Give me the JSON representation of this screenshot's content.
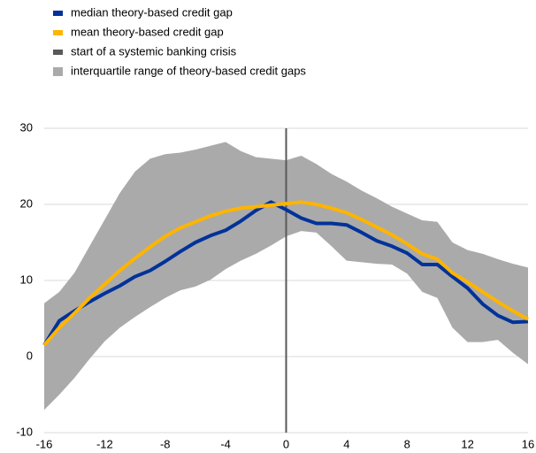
{
  "chart_data": {
    "type": "line",
    "x": [
      -16,
      -15,
      -14,
      -13,
      -12,
      -11,
      -10,
      -9,
      -8,
      -7,
      -6,
      -5,
      -4,
      -3,
      -2,
      -1,
      0,
      1,
      2,
      3,
      4,
      5,
      6,
      7,
      8,
      9,
      10,
      11,
      12,
      13,
      14,
      15,
      16
    ],
    "series": [
      {
        "name": "median theory-based credit gap",
        "color": "#003299",
        "values": [
          1.5,
          4.7,
          6,
          7.2,
          8.3,
          9.3,
          10.5,
          11.3,
          12.5,
          13.8,
          15,
          15.9,
          16.6,
          17.8,
          19.2,
          20.3,
          19.3,
          18.2,
          17.5,
          17.5,
          17.3,
          16.3,
          15.2,
          14.5,
          13.6,
          12.1,
          12.1,
          10.5,
          9,
          6.9,
          5.4,
          4.5,
          4.6
        ]
      },
      {
        "name": "mean theory-based credit gap",
        "color": "#ffb400",
        "values": [
          1.5,
          3.8,
          5.7,
          7.7,
          9.5,
          11.3,
          12.9,
          14.4,
          15.8,
          16.9,
          17.7,
          18.5,
          19.1,
          19.5,
          19.7,
          19.9,
          20.1,
          20.3,
          20,
          19.5,
          18.9,
          18,
          17,
          16,
          14.8,
          13.5,
          12.8,
          11,
          9.8,
          8.5,
          7.2,
          6,
          4.9
        ]
      }
    ],
    "vline": {
      "name": "start of a systemic banking crisis",
      "color": "#595959",
      "x": 0
    },
    "band": {
      "name": "interquartile range of theory-based credit gaps",
      "color": "#aaaaaa",
      "upper": [
        7,
        8.5,
        11,
        14.5,
        18,
        21.5,
        24.3,
        26,
        26.6,
        26.8,
        27.2,
        27.7,
        28.2,
        27,
        26.2,
        26,
        25.8,
        26.4,
        25.3,
        24,
        23,
        21.8,
        20.8,
        19.7,
        18.8,
        17.9,
        17.7,
        15,
        14,
        13.5,
        12.8,
        12.2,
        11.7
      ],
      "lower": [
        -7,
        -5,
        -2.8,
        -0.3,
        2,
        3.8,
        5.2,
        6.5,
        7.7,
        8.7,
        9.2,
        10.1,
        11.5,
        12.6,
        13.5,
        14.6,
        15.8,
        16.5,
        16.3,
        14.5,
        12.6,
        12.4,
        12.2,
        12.1,
        10.9,
        8.5,
        7.7,
        3.8,
        1.9,
        1.9,
        2.2,
        0.5,
        -1
      ]
    },
    "xlim": [
      -16,
      16
    ],
    "ylim": [
      -10,
      30
    ],
    "xticks": [
      -16,
      -12,
      -8,
      -4,
      0,
      4,
      8,
      12,
      16
    ],
    "yticks": [
      -10,
      0,
      10,
      20,
      30
    ],
    "grid": true
  }
}
